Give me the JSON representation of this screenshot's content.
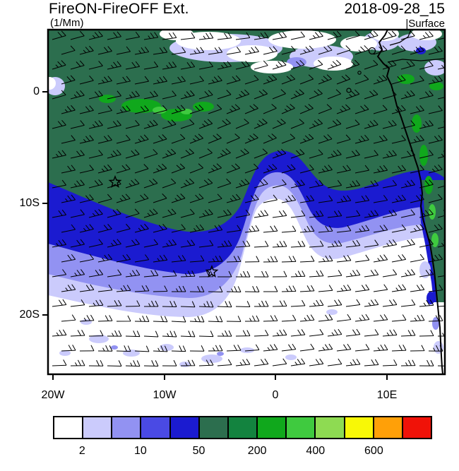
{
  "header": {
    "title": "FireON-FireOFF Ext.",
    "datetime": "2018-09-28_15",
    "units": "(1/Mm)",
    "level_bar": "|",
    "level": "Surface"
  },
  "chart_data": {
    "type": "heatmap",
    "title": "FireON-FireOFF Ext.",
    "datetime": "2018-09-28_15",
    "units": "1/Mm",
    "level": "Surface",
    "projection": "lat-lon map of the southeast Atlantic and west-central African coast",
    "x_ticks": [
      "20W",
      "10W",
      "0",
      "10E"
    ],
    "y_ticks": [
      "0",
      "10S",
      "20S"
    ],
    "lon_range": [
      -20.5,
      15.2
    ],
    "lat_range": [
      -25.3,
      5.6
    ],
    "colorbar": {
      "tick_labels": [
        "2",
        "10",
        "50",
        "200",
        "400",
        "600"
      ],
      "levels": [
        2,
        5,
        10,
        20,
        50,
        100,
        200,
        300,
        400,
        500,
        600,
        700
      ],
      "colors": [
        "#ffffff",
        "#cbcbfc",
        "#9292f2",
        "#4a4ae4",
        "#1b1bd0",
        "#2c6e4e",
        "#13833f",
        "#10a81c",
        "#3fca3f",
        "#8edb52",
        "#f8f806",
        "#ffa008",
        "#f01208"
      ]
    },
    "regions": [
      {
        "value_range": "50-100",
        "color": "dark green",
        "extent": "most of the domain north of about 10S"
      },
      {
        "value_range": "20-50",
        "color": "blue",
        "extent": "arc band from ~10S at 20W dipping to ~13S mid-basin and back to the Angolan coast near 9S"
      },
      {
        "value_range": "2-20",
        "color": "light purple bands",
        "extent": "south of the blue arc, with a rounded lobe near 5W, 9-12S"
      },
      {
        "value_range": "<2",
        "color": "white",
        "extent": "southern third of the domain and cloud-gap patches along the northern edge"
      },
      {
        "value_range": "100-300",
        "color": "bright green",
        "extent": "patches near 1S, 12-16W and along the Angola-Namibia coastline"
      }
    ],
    "markers": [
      {
        "type": "star",
        "lon": -14.4,
        "lat": -8.1
      },
      {
        "type": "star",
        "lon": -5.7,
        "lat": -16.1
      }
    ],
    "overlays": {
      "wind_barbs": {
        "color": "black",
        "coverage": "full domain"
      },
      "coastline": {
        "color": "black"
      }
    }
  }
}
